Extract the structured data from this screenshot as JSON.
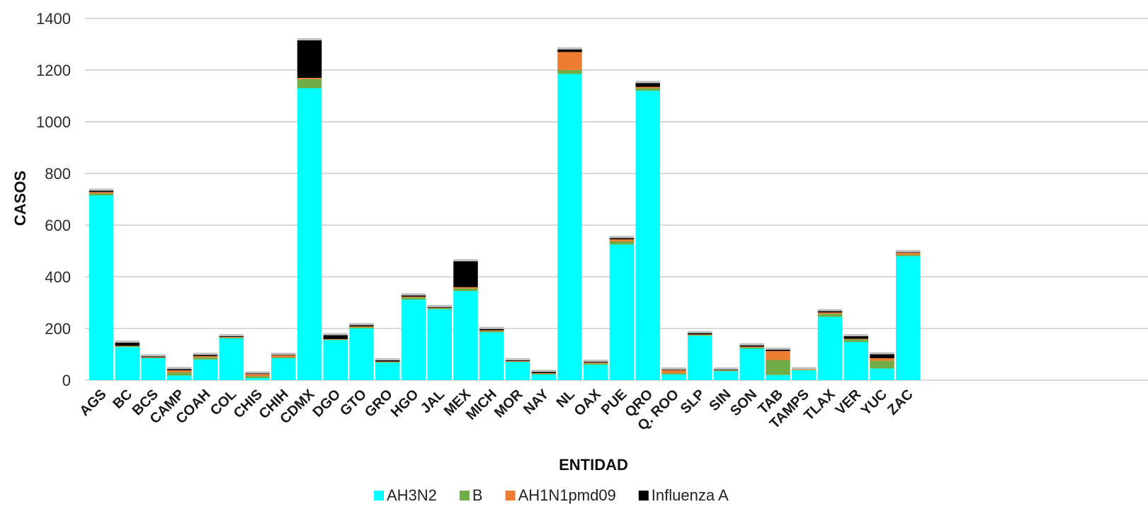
{
  "chart_data": {
    "type": "bar",
    "stacked": true,
    "xlabel": "ENTIDAD",
    "ylabel": "CASOS",
    "ylim": [
      0,
      1400
    ],
    "yticks": [
      0,
      200,
      400,
      600,
      800,
      1000,
      1200,
      1400
    ],
    "grid": true,
    "legend_position": "bottom",
    "categories": [
      "AGS",
      "BC",
      "BCS",
      "CAMP",
      "COAH",
      "COL",
      "CHIS",
      "CHIH",
      "CDMX",
      "DGO",
      "GTO",
      "GRO",
      "HGO",
      "JAL",
      "MEX",
      "MICH",
      "MOR",
      "NAY",
      "NL",
      "OAX",
      "PUE",
      "QRO",
      "Q. ROO",
      "SLP",
      "SIN",
      "SON",
      "TAB",
      "TAMPS",
      "TLAX",
      "VER",
      "YUC",
      "ZAC"
    ],
    "series": [
      {
        "name": "AH3N2",
        "color": "#00FFFF",
        "values": [
          715,
          128,
          85,
          18,
          80,
          162,
          8,
          85,
          1130,
          155,
          200,
          68,
          312,
          275,
          345,
          185,
          70,
          22,
          1185,
          60,
          525,
          1120,
          22,
          172,
          35,
          122,
          20,
          38,
          245,
          148,
          45,
          480
        ]
      },
      {
        "name": "B",
        "color": "#70AD47",
        "values": [
          8,
          3,
          2,
          12,
          8,
          3,
          8,
          3,
          35,
          2,
          5,
          2,
          8,
          3,
          10,
          5,
          2,
          3,
          15,
          5,
          12,
          10,
          5,
          3,
          2,
          5,
          58,
          2,
          12,
          10,
          30,
          5
        ]
      },
      {
        "name": "AH1N1pmd09",
        "color": "#ED7D31",
        "values": [
          5,
          2,
          2,
          8,
          5,
          2,
          8,
          8,
          5,
          2,
          3,
          2,
          3,
          2,
          5,
          3,
          2,
          2,
          70,
          3,
          8,
          5,
          12,
          2,
          2,
          3,
          35,
          2,
          5,
          2,
          10,
          8
        ]
      },
      {
        "name": "Influenza A",
        "color": "#000000",
        "values": [
          5,
          12,
          3,
          5,
          5,
          3,
          2,
          2,
          145,
          15,
          5,
          5,
          5,
          3,
          100,
          5,
          3,
          5,
          10,
          3,
          5,
          15,
          2,
          5,
          2,
          5,
          5,
          0,
          5,
          10,
          15,
          2
        ]
      }
    ]
  },
  "legend": {
    "items": [
      {
        "label": "AH3N2",
        "color": "#00FFFF"
      },
      {
        "label": "B",
        "color": "#70AD47"
      },
      {
        "label": "AH1N1pmd09",
        "color": "#ED7D31"
      },
      {
        "label": "Influenza A",
        "color": "#000000"
      }
    ]
  }
}
